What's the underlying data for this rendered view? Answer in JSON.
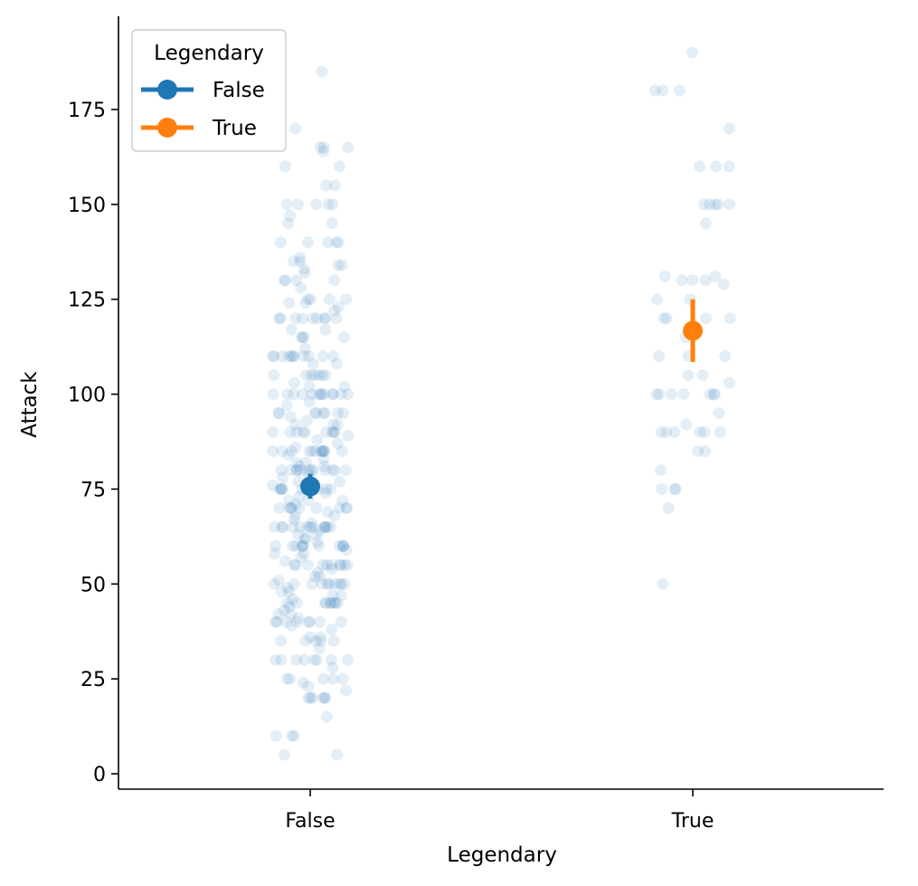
{
  "chart_data": {
    "type": "scatter",
    "subtype": "strip-with-pointplot",
    "xlabel": "Legendary",
    "ylabel": "Attack",
    "categories": [
      "False",
      "True"
    ],
    "ylim": [
      -3,
      198
    ],
    "yticks": [
      0,
      25,
      50,
      75,
      100,
      125,
      150,
      175
    ],
    "grid": false,
    "legend": {
      "title": "Legendary",
      "placement": "top-left",
      "entries": [
        {
          "label": "False",
          "color": "#1f77b4"
        },
        {
          "label": "True",
          "color": "#ff7f0e"
        }
      ]
    },
    "strip_color": "#1f77b4",
    "strip_alpha": 0.12,
    "series": [
      {
        "name": "False",
        "color": "#1f77b4",
        "mean": 75.7,
        "ci": [
          72.5,
          79.0
        ],
        "values": [
          185,
          170,
          165,
          165,
          165,
          164,
          160,
          160,
          155,
          155,
          150,
          150,
          150,
          150,
          150,
          147,
          145,
          145,
          140,
          140,
          140,
          140,
          140,
          136,
          135,
          135,
          134,
          134,
          133,
          132,
          130,
          130,
          130,
          130,
          128,
          125,
          125,
          125,
          125,
          124,
          124,
          123,
          122,
          120,
          120,
          120,
          120,
          120,
          120,
          120,
          120,
          120,
          117,
          117,
          115,
          115,
          115,
          115,
          112,
          110,
          110,
          110,
          110,
          110,
          110,
          110,
          110,
          110,
          110,
          110,
          108,
          108,
          105,
          105,
          105,
          105,
          105,
          105,
          105,
          103,
          102,
          102,
          100,
          100,
          100,
          100,
          100,
          100,
          100,
          100,
          100,
          100,
          100,
          100,
          100,
          98,
          97,
          95,
          95,
          95,
          95,
          95,
          95,
          95,
          95,
          94,
          93,
          92,
          92,
          92,
          90,
          90,
          90,
          90,
          90,
          90,
          90,
          90,
          90,
          89,
          88,
          87,
          86,
          85,
          85,
          85,
          85,
          85,
          85,
          85,
          85,
          85,
          85,
          85,
          85,
          84,
          83,
          82,
          82,
          81,
          81,
          80,
          80,
          80,
          80,
          80,
          80,
          80,
          80,
          80,
          80,
          80,
          80,
          79,
          78,
          77,
          77,
          76,
          75,
          75,
          75,
          75,
          75,
          75,
          75,
          75,
          74,
          73,
          72,
          72,
          72,
          71,
          70,
          70,
          70,
          70,
          70,
          70,
          70,
          70,
          70,
          69,
          68,
          68,
          67,
          66,
          65,
          65,
          65,
          65,
          65,
          65,
          65,
          65,
          65,
          65,
          65,
          65,
          65,
          64,
          63,
          63,
          62,
          62,
          61,
          60,
          60,
          60,
          60,
          60,
          60,
          60,
          60,
          60,
          60,
          60,
          59,
          58,
          58,
          57,
          56,
          55,
          55,
          55,
          55,
          55,
          55,
          55,
          55,
          55,
          55,
          54,
          53,
          52,
          52,
          51,
          50,
          50,
          50,
          50,
          50,
          50,
          50,
          50,
          50,
          50,
          49,
          48,
          48,
          47,
          47,
          46,
          45,
          45,
          45,
          45,
          45,
          45,
          45,
          45,
          45,
          44,
          43,
          42,
          42,
          41,
          40,
          40,
          40,
          40,
          40,
          40,
          40,
          40,
          39,
          38,
          36,
          36,
          35,
          35,
          35,
          35,
          35,
          33,
          30,
          30,
          30,
          30,
          30,
          30,
          30,
          30,
          28,
          25,
          25,
          25,
          25,
          25,
          24,
          23,
          22,
          20,
          20,
          20,
          20,
          20,
          20,
          15,
          10,
          10,
          10,
          5,
          5
        ]
      },
      {
        "name": "True",
        "color": "#ff7f0e",
        "mean": 116.7,
        "ci": [
          108.5,
          125.0
        ],
        "values": [
          190,
          180,
          180,
          180,
          170,
          160,
          160,
          160,
          150,
          150,
          150,
          150,
          150,
          145,
          131,
          131,
          130,
          130,
          130,
          129,
          125,
          125,
          120,
          120,
          120,
          120,
          115,
          110,
          110,
          110,
          105,
          105,
          103,
          100,
          100,
          100,
          100,
          100,
          100,
          100,
          95,
          92,
          90,
          90,
          90,
          90,
          90,
          90,
          85,
          85,
          80,
          75,
          75,
          75,
          70,
          50
        ]
      }
    ]
  }
}
